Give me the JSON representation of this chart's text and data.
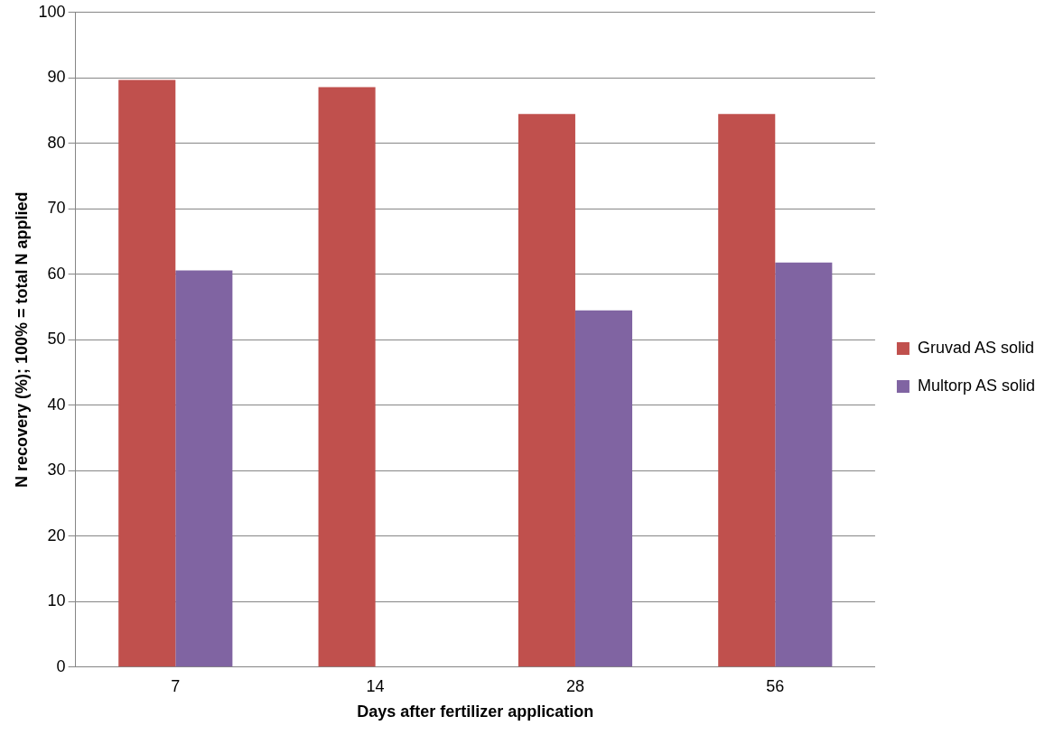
{
  "chart_data": {
    "type": "bar",
    "xlabel": "Days after fertilizer application",
    "ylabel": "N recovery (%); 100% = total N applied",
    "categories": [
      "7",
      "14",
      "28",
      "56"
    ],
    "series": [
      {
        "name": "Gruvad AS solid",
        "color": "#c0504d",
        "values": [
          89.7,
          88.6,
          84.5,
          84.5
        ]
      },
      {
        "name": "Multorp AS solid",
        "color": "#8064a2",
        "values": [
          60.6,
          null,
          54.5,
          61.8
        ]
      }
    ],
    "ylim": [
      0,
      100
    ],
    "yticks": [
      0,
      10,
      20,
      30,
      40,
      50,
      60,
      70,
      80,
      90,
      100
    ],
    "grid": "y",
    "legend": "right"
  }
}
